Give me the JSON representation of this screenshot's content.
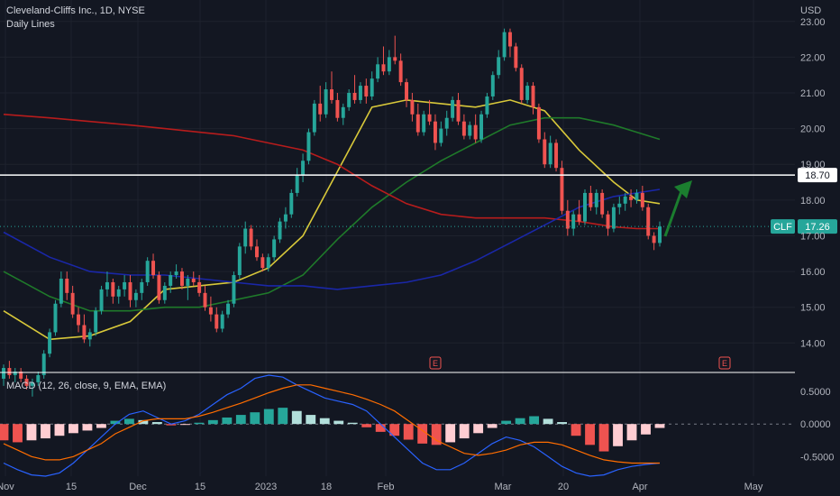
{
  "symbol_legend": "Cleveland-Cliffs Inc., 1D, NYSE",
  "indicator_legend": "Daily Lines",
  "macd_legend": "MACD (12, 26, close, 9, EMA, EMA)",
  "currency": "USD",
  "colors": {
    "background": "#131722",
    "grid": "#1e222d",
    "text": "#b2b5be",
    "up": "#26a69a",
    "down": "#ef5350",
    "ma_fast": "#d8c83a",
    "ma_mid": "#1f7a2a",
    "ma_slow": "#b71c1c",
    "ma_long": "#1a27a8",
    "macd": "#2962ff",
    "signal": "#ff6d00",
    "hist_up_strong": "#26a69a",
    "hist_up_weak": "#b2dfdb",
    "hist_down_strong": "#ef5350",
    "hist_down_weak": "#ffcdd2",
    "arrow": "#1b7e2f",
    "level_line": "#ffffff",
    "price_badge": "#26a69a"
  },
  "chart_data": [
    {
      "type": "candlestick",
      "title": "Cleveland-Cliffs Inc., 1D, NYSE",
      "ylabel": "USD",
      "ylim": [
        13.2,
        23.6
      ],
      "y_ticks": [
        "23.00",
        "22.00",
        "21.00",
        "20.00",
        "19.00",
        "18.00",
        "17.00",
        "16.00",
        "15.00",
        "14.00"
      ],
      "x_ticks": [
        "Nov",
        "15",
        "Dec",
        "15",
        "2023",
        "18",
        "Feb",
        "Mar",
        "20",
        "Apr",
        "May"
      ],
      "grid": true,
      "ohlc": [
        [
          13.0,
          13.4,
          12.8,
          13.3
        ],
        [
          13.3,
          13.5,
          13.0,
          13.1
        ],
        [
          13.1,
          13.3,
          12.9,
          13.2
        ],
        [
          13.2,
          13.3,
          12.9,
          13.0
        ],
        [
          13.0,
          13.1,
          12.7,
          12.8
        ],
        [
          12.8,
          13.0,
          12.5,
          12.9
        ],
        [
          12.9,
          13.2,
          12.8,
          13.1
        ],
        [
          13.1,
          13.8,
          13.0,
          13.7
        ],
        [
          13.7,
          14.4,
          13.6,
          14.3
        ],
        [
          14.3,
          15.2,
          14.2,
          15.1
        ],
        [
          15.1,
          16.0,
          15.0,
          15.8
        ],
        [
          15.8,
          16.0,
          15.2,
          15.4
        ],
        [
          15.4,
          15.6,
          14.7,
          14.8
        ],
        [
          14.8,
          15.0,
          14.3,
          14.5
        ],
        [
          14.5,
          14.8,
          14.0,
          14.1
        ],
        [
          14.1,
          14.4,
          13.9,
          14.3
        ],
        [
          14.3,
          15.0,
          14.2,
          14.9
        ],
        [
          14.9,
          15.6,
          14.8,
          15.5
        ],
        [
          15.5,
          16.0,
          15.3,
          15.7
        ],
        [
          15.7,
          15.8,
          15.1,
          15.3
        ],
        [
          15.3,
          15.6,
          15.1,
          15.5
        ],
        [
          15.5,
          15.9,
          15.3,
          15.7
        ],
        [
          15.7,
          15.9,
          15.0,
          15.2
        ],
        [
          15.2,
          15.5,
          15.0,
          15.4
        ],
        [
          15.4,
          15.8,
          15.2,
          15.7
        ],
        [
          15.7,
          16.4,
          15.6,
          16.3
        ],
        [
          16.3,
          16.5,
          15.8,
          15.9
        ],
        [
          15.9,
          16.0,
          15.1,
          15.2
        ],
        [
          15.2,
          15.7,
          15.1,
          15.6
        ],
        [
          15.6,
          16.0,
          15.4,
          15.9
        ],
        [
          15.9,
          16.2,
          15.8,
          16.0
        ],
        [
          16.0,
          16.1,
          15.5,
          15.6
        ],
        [
          15.6,
          15.9,
          15.2,
          15.8
        ],
        [
          15.8,
          16.0,
          15.6,
          15.7
        ],
        [
          15.7,
          15.9,
          15.3,
          15.4
        ],
        [
          15.4,
          15.6,
          14.9,
          15.0
        ],
        [
          15.0,
          15.3,
          14.6,
          14.8
        ],
        [
          14.8,
          15.0,
          14.3,
          14.4
        ],
        [
          14.4,
          14.9,
          14.3,
          14.8
        ],
        [
          14.8,
          15.2,
          14.7,
          15.1
        ],
        [
          15.1,
          16.0,
          15.0,
          15.9
        ],
        [
          15.9,
          16.8,
          15.8,
          16.7
        ],
        [
          16.7,
          17.4,
          16.5,
          17.2
        ],
        [
          17.2,
          17.3,
          16.6,
          16.7
        ],
        [
          16.7,
          16.9,
          16.3,
          16.4
        ],
        [
          16.4,
          16.5,
          16.0,
          16.1
        ],
        [
          16.1,
          16.5,
          16.0,
          16.4
        ],
        [
          16.4,
          17.0,
          16.3,
          16.9
        ],
        [
          16.9,
          17.5,
          16.8,
          17.4
        ],
        [
          17.4,
          17.8,
          17.2,
          17.6
        ],
        [
          17.6,
          18.3,
          17.5,
          18.2
        ],
        [
          18.2,
          18.9,
          18.1,
          18.7
        ],
        [
          18.7,
          19.3,
          18.5,
          19.1
        ],
        [
          19.1,
          20.0,
          19.0,
          19.9
        ],
        [
          19.9,
          20.8,
          19.8,
          20.7
        ],
        [
          20.7,
          21.2,
          20.2,
          20.4
        ],
        [
          20.4,
          21.3,
          20.3,
          21.1
        ],
        [
          21.1,
          21.6,
          20.7,
          20.8
        ],
        [
          20.8,
          21.0,
          20.2,
          20.3
        ],
        [
          20.3,
          20.7,
          20.1,
          20.6
        ],
        [
          20.6,
          21.1,
          20.5,
          21.0
        ],
        [
          21.0,
          21.5,
          20.7,
          20.8
        ],
        [
          20.8,
          21.3,
          20.7,
          21.2
        ],
        [
          21.2,
          21.4,
          20.7,
          20.9
        ],
        [
          20.9,
          21.6,
          20.8,
          21.4
        ],
        [
          21.4,
          22.0,
          21.3,
          21.8
        ],
        [
          21.8,
          22.3,
          21.5,
          21.6
        ],
        [
          21.6,
          22.2,
          21.5,
          22.0
        ],
        [
          22.0,
          22.6,
          21.8,
          21.9
        ],
        [
          21.9,
          22.1,
          21.2,
          21.3
        ],
        [
          21.3,
          21.4,
          20.6,
          20.8
        ],
        [
          20.8,
          21.0,
          20.2,
          20.4
        ],
        [
          20.4,
          20.7,
          19.8,
          19.9
        ],
        [
          19.9,
          20.5,
          19.8,
          20.4
        ],
        [
          20.4,
          20.8,
          20.1,
          20.2
        ],
        [
          20.2,
          20.4,
          19.4,
          19.6
        ],
        [
          19.6,
          20.2,
          19.5,
          20.0
        ],
        [
          20.0,
          20.5,
          19.8,
          20.3
        ],
        [
          20.3,
          20.9,
          20.2,
          20.8
        ],
        [
          20.8,
          21.0,
          20.1,
          20.2
        ],
        [
          20.2,
          20.4,
          19.7,
          19.8
        ],
        [
          19.8,
          20.2,
          19.7,
          20.1
        ],
        [
          20.1,
          20.4,
          19.6,
          19.7
        ],
        [
          19.7,
          20.5,
          19.6,
          20.4
        ],
        [
          20.4,
          21.0,
          20.3,
          20.9
        ],
        [
          20.9,
          21.6,
          20.8,
          21.5
        ],
        [
          21.5,
          22.2,
          21.4,
          22.0
        ],
        [
          22.0,
          22.8,
          21.9,
          22.7
        ],
        [
          22.7,
          22.8,
          22.0,
          22.3
        ],
        [
          22.3,
          22.4,
          21.6,
          21.7
        ],
        [
          21.7,
          21.8,
          20.7,
          20.8
        ],
        [
          20.8,
          21.3,
          20.7,
          21.2
        ],
        [
          21.2,
          21.3,
          20.4,
          20.6
        ],
        [
          20.6,
          20.7,
          19.6,
          19.7
        ],
        [
          19.7,
          19.9,
          18.9,
          19.0
        ],
        [
          19.0,
          19.8,
          18.9,
          19.6
        ],
        [
          19.6,
          19.7,
          18.8,
          18.9
        ],
        [
          18.9,
          19.1,
          17.6,
          17.7
        ],
        [
          17.7,
          18.0,
          17.0,
          17.2
        ],
        [
          17.2,
          17.7,
          17.0,
          17.6
        ],
        [
          17.6,
          18.0,
          17.3,
          17.4
        ],
        [
          17.4,
          18.3,
          17.3,
          18.2
        ],
        [
          18.2,
          18.4,
          17.7,
          17.8
        ],
        [
          17.8,
          18.3,
          17.6,
          18.2
        ],
        [
          18.2,
          18.3,
          17.5,
          17.6
        ],
        [
          17.6,
          17.7,
          17.0,
          17.2
        ],
        [
          17.2,
          17.9,
          17.1,
          17.8
        ],
        [
          17.8,
          18.1,
          17.6,
          17.9
        ],
        [
          17.9,
          18.2,
          17.7,
          18.1
        ],
        [
          18.1,
          18.3,
          17.8,
          18.0
        ],
        [
          18.0,
          18.3,
          17.9,
          18.2
        ],
        [
          18.2,
          18.4,
          17.7,
          17.8
        ],
        [
          17.8,
          17.9,
          16.9,
          17.0
        ],
        [
          17.0,
          17.1,
          16.6,
          16.8
        ],
        [
          16.8,
          17.4,
          16.7,
          17.26
        ]
      ],
      "overlays": [
        {
          "name": "",
          "color": "#d8c83a",
          "x": [
            0,
            8,
            15,
            22,
            28,
            34,
            40,
            46,
            52,
            58,
            64,
            70,
            76,
            82,
            88,
            94,
            100,
            106,
            110,
            114
          ],
          "y": [
            14.9,
            14.1,
            14.2,
            14.6,
            15.5,
            15.6,
            15.7,
            16.1,
            17.0,
            18.8,
            20.6,
            20.8,
            20.7,
            20.6,
            20.8,
            20.5,
            19.4,
            18.5,
            18.0,
            17.9
          ]
        },
        {
          "name": "",
          "color": "#1f7a2a",
          "x": [
            0,
            8,
            15,
            22,
            28,
            34,
            40,
            46,
            52,
            58,
            64,
            70,
            76,
            82,
            88,
            94,
            100,
            106,
            110,
            114
          ],
          "y": [
            16.0,
            15.3,
            14.9,
            14.9,
            15.0,
            15.0,
            15.2,
            15.4,
            15.9,
            16.9,
            17.8,
            18.5,
            19.1,
            19.6,
            20.1,
            20.3,
            20.3,
            20.1,
            19.9,
            19.7
          ]
        },
        {
          "name": "",
          "color": "#b71c1c",
          "x": [
            0,
            8,
            15,
            22,
            28,
            34,
            40,
            46,
            52,
            58,
            64,
            70,
            76,
            82,
            88,
            94,
            100,
            106,
            110,
            114
          ],
          "y": [
            20.4,
            20.3,
            20.2,
            20.1,
            20.0,
            19.9,
            19.8,
            19.6,
            19.4,
            19.0,
            18.4,
            17.9,
            17.6,
            17.5,
            17.5,
            17.5,
            17.4,
            17.25,
            17.2,
            17.2
          ]
        },
        {
          "name": "",
          "color": "#1a27a8",
          "x": [
            0,
            8,
            15,
            22,
            28,
            34,
            40,
            46,
            52,
            58,
            64,
            70,
            76,
            82,
            88,
            94,
            100,
            106,
            110,
            114
          ],
          "y": [
            17.1,
            16.4,
            16.0,
            15.9,
            15.9,
            15.8,
            15.7,
            15.6,
            15.6,
            15.5,
            15.6,
            15.7,
            15.9,
            16.3,
            16.8,
            17.3,
            17.8,
            18.1,
            18.2,
            18.3
          ]
        }
      ],
      "horizontal_line": {
        "value": "18.70"
      },
      "last_price": {
        "symbol": "CLF",
        "value": "17.26"
      },
      "event_markers": [
        "E",
        "E"
      ]
    },
    {
      "type": "macd",
      "title": "MACD (12, 26, close, 9, EMA, EMA)",
      "ylim": [
        -0.8,
        0.75
      ],
      "y_ticks": [
        "0.5000",
        "0.0000",
        "-0.5000"
      ],
      "macd": [
        -0.6,
        -0.7,
        -0.78,
        -0.8,
        -0.75,
        -0.6,
        -0.4,
        -0.2,
        0.0,
        0.15,
        0.2,
        0.1,
        0.0,
        0.05,
        0.15,
        0.3,
        0.45,
        0.55,
        0.7,
        0.75,
        0.72,
        0.6,
        0.5,
        0.4,
        0.35,
        0.3,
        0.2,
        0.0,
        -0.2,
        -0.4,
        -0.6,
        -0.7,
        -0.7,
        -0.6,
        -0.45,
        -0.3,
        -0.2,
        -0.25,
        -0.35,
        -0.5,
        -0.65,
        -0.75,
        -0.8,
        -0.78,
        -0.7,
        -0.65,
        -0.62,
        -0.6
      ],
      "signal": [
        -0.3,
        -0.4,
        -0.5,
        -0.55,
        -0.55,
        -0.5,
        -0.4,
        -0.3,
        -0.15,
        -0.05,
        0.05,
        0.08,
        0.08,
        0.08,
        0.12,
        0.18,
        0.25,
        0.32,
        0.4,
        0.48,
        0.55,
        0.6,
        0.6,
        0.55,
        0.5,
        0.45,
        0.38,
        0.3,
        0.2,
        0.05,
        -0.1,
        -0.25,
        -0.35,
        -0.45,
        -0.48,
        -0.45,
        -0.4,
        -0.32,
        -0.28,
        -0.28,
        -0.32,
        -0.4,
        -0.48,
        -0.55,
        -0.58,
        -0.6,
        -0.6,
        -0.6
      ],
      "histogram": [
        -0.25,
        -0.28,
        -0.25,
        -0.22,
        -0.18,
        -0.14,
        -0.1,
        -0.06,
        0.05,
        0.08,
        0.06,
        0.03,
        -0.02,
        -0.01,
        0.02,
        0.06,
        0.1,
        0.14,
        0.18,
        0.23,
        0.25,
        0.2,
        0.14,
        0.09,
        0.05,
        0.02,
        -0.05,
        -0.12,
        -0.18,
        -0.24,
        -0.3,
        -0.32,
        -0.28,
        -0.22,
        -0.14,
        -0.06,
        0.05,
        0.09,
        0.12,
        0.08,
        0.03,
        -0.18,
        -0.32,
        -0.42,
        -0.34,
        -0.25,
        -0.16,
        -0.06
      ]
    }
  ]
}
